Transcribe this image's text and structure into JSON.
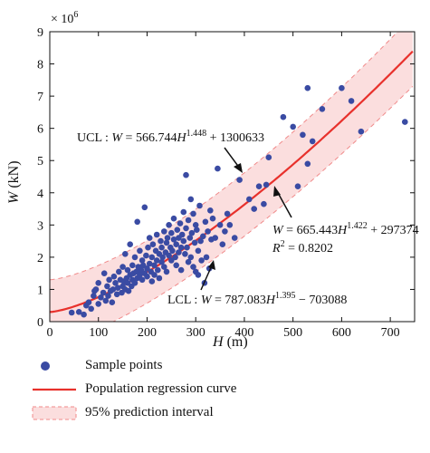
{
  "chart_data": {
    "type": "scatter",
    "xlabel_var": "H",
    "xlabel_unit": " (m)",
    "ylabel_var": "W",
    "ylabel_unit": " (kN)",
    "y_multiplier": "× 10",
    "y_multiplier_exp": "6",
    "xlim": [
      0,
      750
    ],
    "ylim": [
      0,
      9
    ],
    "x_ticks": [
      "0",
      "100",
      "200",
      "300",
      "400",
      "500",
      "600",
      "700"
    ],
    "y_ticks": [
      "0",
      "1",
      "2",
      "3",
      "4",
      "5",
      "6",
      "7",
      "8",
      "9"
    ],
    "legend": {
      "sample_points": "Sample points",
      "regression": "Population regression curve",
      "interval": "95% prediction interval"
    },
    "colors": {
      "points": "#3a4ba3",
      "regression": "#e8312c",
      "band_fill": "#fbdede",
      "band_edge": "#f08a8a"
    },
    "annotations": {
      "ucl_prefix": "UCL : ",
      "ucl_w": "W",
      "ucl_mid": " = 566.744",
      "ucl_h": "H",
      "ucl_exp": "1.448",
      "ucl_suffix": " + 1300633",
      "reg_w": "W",
      "reg_mid": " = 665.443",
      "reg_h": "H",
      "reg_exp": "1.422",
      "reg_suffix": " + 297374",
      "r2_r": "R",
      "r2_exp": "2",
      "r2_value": " = 0.8202",
      "lcl_prefix": "LCL : ",
      "lcl_w": "W",
      "lcl_mid": " = 787.083",
      "lcl_h": "H",
      "lcl_exp": "1.395",
      "lcl_suffix": " − 703088"
    },
    "curves": {
      "regression": {
        "a": 665.443,
        "b": 1.422,
        "c": 297374
      },
      "ucl": {
        "a": 566.744,
        "b": 1.448,
        "c": 1300633
      },
      "lcl": {
        "a": 787.083,
        "b": 1.395,
        "c": -703088
      }
    },
    "points": [
      [
        45,
        0.28
      ],
      [
        60,
        0.3
      ],
      [
        70,
        0.22
      ],
      [
        75,
        0.5
      ],
      [
        80,
        0.6
      ],
      [
        85,
        0.4
      ],
      [
        90,
        0.8
      ],
      [
        92,
        0.95
      ],
      [
        95,
        1.0
      ],
      [
        100,
        0.55
      ],
      [
        100,
        1.2
      ],
      [
        105,
        0.75
      ],
      [
        110,
        0.9
      ],
      [
        112,
        1.5
      ],
      [
        115,
        0.65
      ],
      [
        118,
        1.1
      ],
      [
        120,
        0.8
      ],
      [
        122,
        1.3
      ],
      [
        125,
        0.95
      ],
      [
        128,
        0.6
      ],
      [
        130,
        1.0
      ],
      [
        132,
        1.4
      ],
      [
        135,
        1.2
      ],
      [
        138,
        0.85
      ],
      [
        140,
        1.05
      ],
      [
        142,
        1.55
      ],
      [
        145,
        1.3
      ],
      [
        148,
        0.9
      ],
      [
        150,
        1.1
      ],
      [
        150,
        1.7
      ],
      [
        152,
        1.25
      ],
      [
        155,
        1.0
      ],
      [
        155,
        2.1
      ],
      [
        158,
        1.35
      ],
      [
        160,
        1.2
      ],
      [
        160,
        1.6
      ],
      [
        162,
        0.95
      ],
      [
        165,
        1.45
      ],
      [
        165,
        2.4
      ],
      [
        168,
        1.1
      ],
      [
        170,
        1.3
      ],
      [
        170,
        1.75
      ],
      [
        172,
        1.5
      ],
      [
        175,
        1.2
      ],
      [
        175,
        2.0
      ],
      [
        178,
        1.55
      ],
      [
        180,
        1.35
      ],
      [
        180,
        3.1
      ],
      [
        182,
        1.7
      ],
      [
        185,
        1.45
      ],
      [
        185,
        2.2
      ],
      [
        188,
        1.6
      ],
      [
        190,
        1.3
      ],
      [
        190,
        1.9
      ],
      [
        192,
        1.75
      ],
      [
        195,
        3.55
      ],
      [
        195,
        1.5
      ],
      [
        198,
        2.05
      ],
      [
        200,
        1.65
      ],
      [
        200,
        1.4
      ],
      [
        202,
        2.3
      ],
      [
        205,
        1.8
      ],
      [
        205,
        2.6
      ],
      [
        208,
        1.55
      ],
      [
        210,
        2.0
      ],
      [
        210,
        1.25
      ],
      [
        212,
        2.4
      ],
      [
        215,
        1.75
      ],
      [
        215,
        1.45
      ],
      [
        218,
        2.2
      ],
      [
        220,
        1.9
      ],
      [
        220,
        2.7
      ],
      [
        222,
        1.6
      ],
      [
        225,
        2.1
      ],
      [
        225,
        1.35
      ],
      [
        228,
        2.5
      ],
      [
        230,
        1.85
      ],
      [
        230,
        2.3
      ],
      [
        232,
        2.0
      ],
      [
        235,
        1.7
      ],
      [
        235,
        2.8
      ],
      [
        238,
        2.15
      ],
      [
        240,
        2.45
      ],
      [
        240,
        1.55
      ],
      [
        242,
        2.6
      ],
      [
        245,
        2.05
      ],
      [
        245,
        3.0
      ],
      [
        248,
        2.3
      ],
      [
        250,
        1.9
      ],
      [
        250,
        2.75
      ],
      [
        252,
        2.2
      ],
      [
        255,
        2.55
      ],
      [
        255,
        3.2
      ],
      [
        258,
        2.0
      ],
      [
        260,
        2.4
      ],
      [
        260,
        1.75
      ],
      [
        262,
        2.85
      ],
      [
        265,
        2.6
      ],
      [
        265,
        2.15
      ],
      [
        268,
        3.05
      ],
      [
        270,
        2.3
      ],
      [
        270,
        1.6
      ],
      [
        272,
        2.7
      ],
      [
        275,
        3.4
      ],
      [
        275,
        2.5
      ],
      [
        278,
        2.1
      ],
      [
        280,
        2.9
      ],
      [
        280,
        4.55
      ],
      [
        282,
        2.3
      ],
      [
        285,
        3.15
      ],
      [
        285,
        1.85
      ],
      [
        288,
        2.6
      ],
      [
        290,
        3.8
      ],
      [
        290,
        2.0
      ],
      [
        292,
        2.75
      ],
      [
        295,
        3.35
      ],
      [
        295,
        1.7
      ],
      [
        298,
        2.45
      ],
      [
        300,
        3.0
      ],
      [
        300,
        1.55
      ],
      [
        302,
        2.85
      ],
      [
        305,
        2.2
      ],
      [
        305,
        1.45
      ],
      [
        308,
        3.6
      ],
      [
        310,
        2.5
      ],
      [
        312,
        1.9
      ],
      [
        315,
        2.65
      ],
      [
        318,
        1.2
      ],
      [
        320,
        3.1
      ],
      [
        322,
        2.0
      ],
      [
        325,
        2.8
      ],
      [
        328,
        1.65
      ],
      [
        330,
        3.45
      ],
      [
        332,
        2.55
      ],
      [
        335,
        3.2
      ],
      [
        340,
        2.6
      ],
      [
        345,
        4.75
      ],
      [
        350,
        3.0
      ],
      [
        355,
        2.4
      ],
      [
        360,
        2.8
      ],
      [
        365,
        3.35
      ],
      [
        370,
        3.0
      ],
      [
        380,
        2.6
      ],
      [
        390,
        4.4
      ],
      [
        410,
        3.8
      ],
      [
        420,
        3.5
      ],
      [
        430,
        4.2
      ],
      [
        440,
        3.65
      ],
      [
        445,
        4.25
      ],
      [
        450,
        5.1
      ],
      [
        480,
        6.35
      ],
      [
        500,
        6.05
      ],
      [
        510,
        4.2
      ],
      [
        520,
        5.8
      ],
      [
        530,
        7.25
      ],
      [
        530,
        4.9
      ],
      [
        540,
        5.6
      ],
      [
        560,
        6.6
      ],
      [
        600,
        7.25
      ],
      [
        620,
        6.85
      ],
      [
        640,
        5.9
      ],
      [
        730,
        6.2
      ]
    ]
  }
}
